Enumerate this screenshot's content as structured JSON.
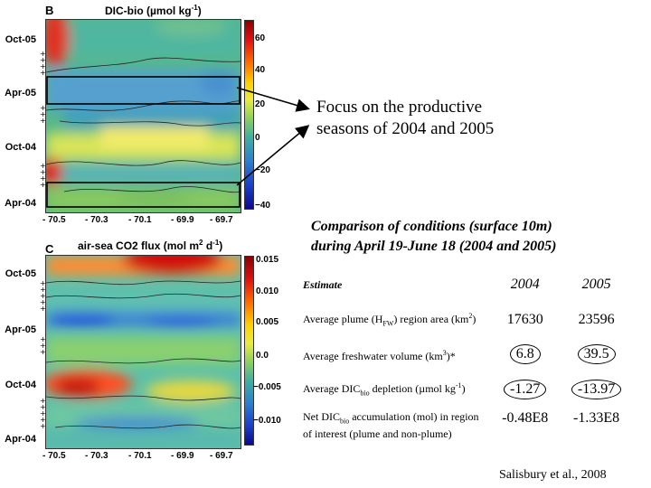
{
  "chart_data": [
    {
      "type": "heatmap",
      "panel": "B",
      "title": "DIC-bio (µmol kg⁻¹)",
      "title_parts": {
        "prefix": "DIC-bio (",
        "unit": "µmol kg",
        "exp": "-1",
        "suffix": ")"
      },
      "xlabel": "",
      "ylabel": "",
      "x_ticks": [
        "- 70.5",
        "- 70.3",
        "- 70.1",
        "- 69.9",
        "- 69.7"
      ],
      "y_ticks": [
        "Oct-05",
        "Apr-05",
        "Oct-04",
        "Apr-04"
      ],
      "colorbar_ticks": [
        "60",
        "40",
        "20",
        "0",
        "−20",
        "−40"
      ],
      "colorbar_range": [
        -40,
        60
      ]
    },
    {
      "type": "heatmap",
      "panel": "C",
      "title": "air-sea CO2 flux (mol m² d⁻¹)",
      "title_parts": {
        "prefix": "air-sea CO2 flux (mol m",
        "sup1": "2",
        "mid": " d",
        "exp": "-1",
        "suffix": ")"
      },
      "xlabel": "",
      "ylabel": "",
      "x_ticks": [
        "- 70.5",
        "- 70.3",
        "- 70.1",
        "- 69.9",
        "- 69.7"
      ],
      "y_ticks": [
        "Oct-05",
        "Apr-05",
        "Oct-04",
        "Apr-04"
      ],
      "colorbar_ticks": [
        "0.015",
        "0.010",
        "0.005",
        "0.0",
        "−0.005",
        "−0.010"
      ],
      "colorbar_range": [
        -0.012,
        0.015
      ]
    }
  ],
  "annotation": {
    "line1": "Focus on the productive",
    "line2": "seasons of 2004 and 2005"
  },
  "comparison": {
    "title_line1": "Comparison of conditions (surface 10m)",
    "title_line2": "during April 19-June 18 (2004 and 2005)",
    "header": {
      "estimate": "Estimate",
      "y2004": "2004",
      "y2005": "2005"
    },
    "rows": [
      {
        "label": "Average plume (H",
        "sub": "FW",
        "label_tail": ") region area (km",
        "sup": "2",
        "label_end": ")",
        "v2004": "17630",
        "v2005": "23596",
        "circled": false
      },
      {
        "label": "Average freshwater volume (km",
        "sup": "3",
        "label_end": ")*",
        "v2004": "6.8",
        "v2005": "39.5",
        "circled": true
      },
      {
        "label": "Average DIC",
        "sub": "bio",
        "label_tail": " depletion (µmol kg",
        "sup": "-1",
        "label_end": ")",
        "v2004": "-1.27",
        "v2005": "-13.97",
        "circled": true
      },
      {
        "label": "Net DIC",
        "sub": "bio",
        "label_tail": " accumulation (mol) in region of interest (plume and non-plume)",
        "v2004": "-0.48E8",
        "v2005": "-1.33E8",
        "circled": false
      }
    ]
  },
  "credit": "Salisbury et al., 2008"
}
